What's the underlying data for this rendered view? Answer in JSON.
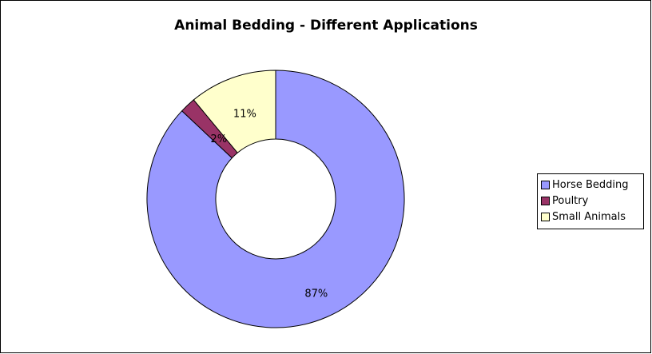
{
  "chart_data": {
    "type": "pie",
    "title": "Animal Bedding - Different Applications",
    "donut": true,
    "legend_position": "right",
    "categories": [
      "Horse Bedding",
      "Poultry",
      "Small Animals"
    ],
    "values": [
      87,
      2,
      11
    ],
    "labels": [
      "87%",
      "2%",
      "11%"
    ],
    "colors": [
      "#9999FF",
      "#993366",
      "#FFFFCC"
    ]
  }
}
